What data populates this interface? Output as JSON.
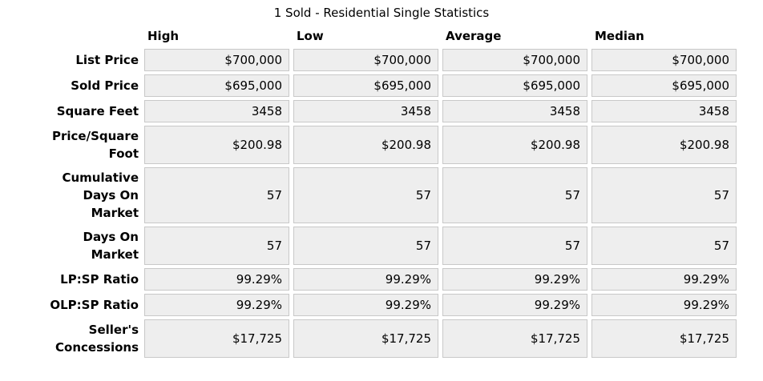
{
  "title": "1 Sold - Residential Single Statistics",
  "colors": {
    "cell_background": "#eeeeee",
    "cell_border": "#c8c8c8",
    "text": "#000000"
  },
  "chart_data": {
    "type": "table",
    "title": "1 Sold - Residential Single Statistics",
    "columns": [
      "High",
      "Low",
      "Average",
      "Median"
    ],
    "rows": [
      {
        "label": "List Price",
        "values": [
          "$700,000",
          "$700,000",
          "$700,000",
          "$700,000"
        ]
      },
      {
        "label": "Sold Price",
        "values": [
          "$695,000",
          "$695,000",
          "$695,000",
          "$695,000"
        ]
      },
      {
        "label": "Square Feet",
        "values": [
          "3458",
          "3458",
          "3458",
          "3458"
        ]
      },
      {
        "label": "Price/Square\nFoot",
        "values": [
          "$200.98",
          "$200.98",
          "$200.98",
          "$200.98"
        ]
      },
      {
        "label": "Cumulative\nDays On\nMarket",
        "values": [
          "57",
          "57",
          "57",
          "57"
        ]
      },
      {
        "label": "Days On\nMarket",
        "values": [
          "57",
          "57",
          "57",
          "57"
        ]
      },
      {
        "label": "LP:SP Ratio",
        "values": [
          "99.29%",
          "99.29%",
          "99.29%",
          "99.29%"
        ]
      },
      {
        "label": "OLP:SP Ratio",
        "values": [
          "99.29%",
          "99.29%",
          "99.29%",
          "99.29%"
        ]
      },
      {
        "label": "Seller's\nConcessions",
        "values": [
          "$17,725",
          "$17,725",
          "$17,725",
          "$17,725"
        ]
      }
    ]
  }
}
